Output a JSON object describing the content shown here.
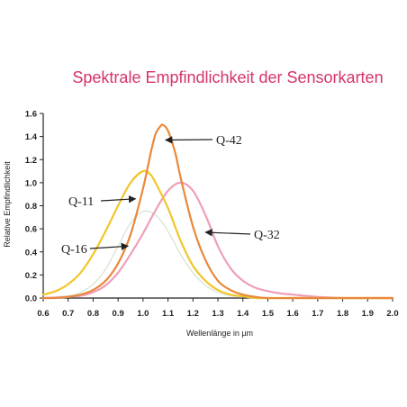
{
  "chart_data": {
    "type": "line",
    "title": "Spektrale Empfindlichkeit der Sensorkarten",
    "xlabel": "Wellenlänge in µm",
    "ylabel": "Relative Empfindlichkeit",
    "xlim": [
      0.6,
      2.0
    ],
    "ylim": [
      0,
      1.6
    ],
    "x_ticks": [
      "0.6",
      "0.7",
      "0.8",
      "0.9",
      "1.0",
      "1.1",
      "1.2",
      "1.3",
      "1.4",
      "1.5",
      "1.6",
      "1.7",
      "1.8",
      "1.9",
      "2.0"
    ],
    "y_ticks": [
      "0.0",
      "0.2",
      "0.4",
      "0.6",
      "0.8",
      "1.0",
      "1.2",
      "1.4",
      "1.6"
    ],
    "grid": false,
    "series": [
      {
        "name": "Q-42",
        "color": "#e8883a",
        "x": [
          0.6,
          0.65,
          0.7,
          0.75,
          0.8,
          0.85,
          0.9,
          0.95,
          1.0,
          1.03,
          1.05,
          1.07,
          1.08,
          1.1,
          1.13,
          1.15,
          1.2,
          1.25,
          1.3,
          1.35,
          1.4,
          1.45,
          1.5,
          1.6,
          1.7,
          1.8,
          1.9,
          2.0
        ],
        "y": [
          0.0,
          0.0,
          0.01,
          0.03,
          0.07,
          0.15,
          0.3,
          0.55,
          0.95,
          1.25,
          1.42,
          1.49,
          1.5,
          1.45,
          1.25,
          1.05,
          0.62,
          0.33,
          0.15,
          0.07,
          0.03,
          0.01,
          0.0,
          0.0,
          0.0,
          0.0,
          0.0,
          0.0
        ]
      },
      {
        "name": "Q-11",
        "color": "#f2c62a",
        "x": [
          0.6,
          0.65,
          0.7,
          0.75,
          0.8,
          0.85,
          0.9,
          0.95,
          1.0,
          1.03,
          1.05,
          1.1,
          1.15,
          1.2,
          1.25,
          1.3,
          1.35,
          1.4,
          1.45,
          1.5,
          1.6,
          1.7,
          1.8,
          1.9,
          2.0
        ],
        "y": [
          0.03,
          0.06,
          0.12,
          0.22,
          0.38,
          0.58,
          0.8,
          1.0,
          1.1,
          1.07,
          1.0,
          0.78,
          0.5,
          0.28,
          0.15,
          0.07,
          0.03,
          0.015,
          0.0,
          0.0,
          0.0,
          0.0,
          0.0,
          0.0,
          0.0
        ]
      },
      {
        "name": "Q-32",
        "color": "#ee9fb8",
        "x": [
          0.6,
          0.7,
          0.75,
          0.8,
          0.85,
          0.9,
          0.95,
          1.0,
          1.05,
          1.1,
          1.15,
          1.2,
          1.25,
          1.3,
          1.35,
          1.4,
          1.45,
          1.5,
          1.55,
          1.6,
          1.7,
          1.8,
          1.9,
          2.0
        ],
        "y": [
          0.0,
          0.01,
          0.02,
          0.05,
          0.11,
          0.22,
          0.38,
          0.56,
          0.76,
          0.93,
          1.0,
          0.93,
          0.72,
          0.45,
          0.26,
          0.15,
          0.09,
          0.06,
          0.04,
          0.03,
          0.01,
          0.0,
          0.0,
          0.0
        ]
      },
      {
        "name": "Q-16",
        "color": "#d8e8d4",
        "x": [
          0.6,
          0.7,
          0.75,
          0.8,
          0.85,
          0.9,
          0.95,
          1.0,
          1.05,
          1.1,
          1.15,
          1.2,
          1.25,
          1.3,
          1.35,
          1.4,
          1.5,
          1.6,
          1.7,
          2.0
        ],
        "y": [
          0.0,
          0.02,
          0.05,
          0.12,
          0.25,
          0.45,
          0.65,
          0.75,
          0.72,
          0.58,
          0.38,
          0.22,
          0.11,
          0.05,
          0.02,
          0.01,
          0.0,
          0.0,
          0.0,
          0.0
        ]
      }
    ],
    "annotations": [
      {
        "text": "Q-42",
        "series": "Q-42",
        "arrow_to": [
          1.09,
          1.37
        ]
      },
      {
        "text": "Q-11",
        "series": "Q-11",
        "arrow_to": [
          0.97,
          0.86
        ]
      },
      {
        "text": "Q-16",
        "series": "Q-16",
        "arrow_to": [
          0.94,
          0.45
        ]
      },
      {
        "text": "Q-32",
        "series": "Q-32",
        "arrow_to": [
          1.25,
          0.57
        ]
      }
    ]
  }
}
